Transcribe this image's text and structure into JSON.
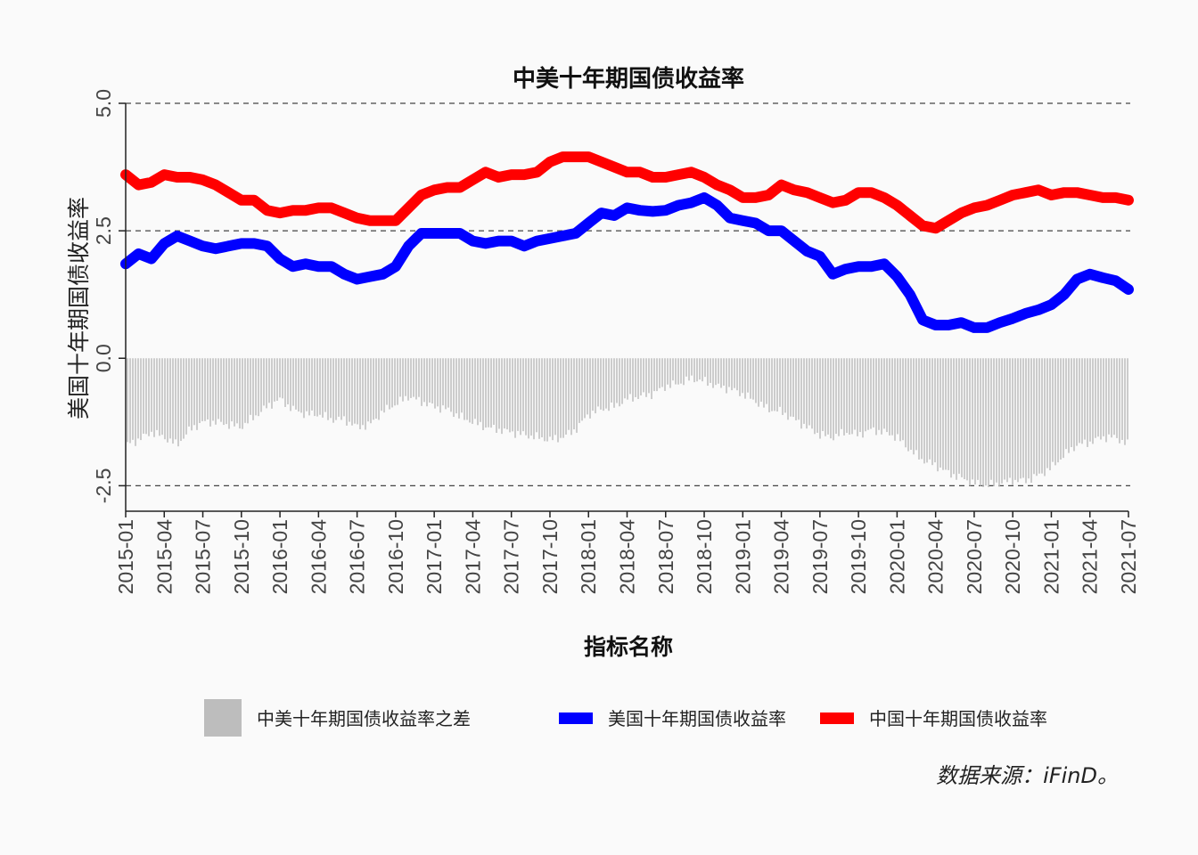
{
  "chart_data": {
    "type": "line",
    "title": "中美十年期国债收益率",
    "xlabel": "指标名称",
    "ylabel": "美国十年期国债收益率",
    "ylim": [
      -3.0,
      5.0
    ],
    "y_ticks": [
      "-2.5",
      "0.0",
      "2.5",
      "5.0"
    ],
    "y_tick_values": [
      -2.5,
      0.0,
      2.5,
      5.0
    ],
    "x_range": [
      "2015-01",
      "2021-07"
    ],
    "x_ticks": [
      "2015-01",
      "2015-04",
      "2015-07",
      "2015-10",
      "2016-01",
      "2016-04",
      "2016-07",
      "2016-10",
      "2017-01",
      "2017-04",
      "2017-07",
      "2017-10",
      "2018-01",
      "2018-04",
      "2018-07",
      "2018-10",
      "2019-01",
      "2019-04",
      "2019-07",
      "2019-10",
      "2020-01",
      "2020-04",
      "2020-07",
      "2020-10",
      "2021-01",
      "2021-04",
      "2021-07"
    ],
    "gridlines": [
      -2.5,
      2.5,
      5.0
    ],
    "grid_style": "dashed",
    "legend_placement": "bottom",
    "source_note": "数据来源：iFinD。",
    "series": [
      {
        "name": "中美十年期国债收益率之差",
        "kind": "bar",
        "color": "#bdbdbd",
        "x": [
          "2015-01",
          "2015-02",
          "2015-03",
          "2015-04",
          "2015-05",
          "2015-06",
          "2015-07",
          "2015-08",
          "2015-09",
          "2015-10",
          "2015-11",
          "2015-12",
          "2016-01",
          "2016-02",
          "2016-03",
          "2016-04",
          "2016-05",
          "2016-06",
          "2016-07",
          "2016-08",
          "2016-09",
          "2016-10",
          "2016-11",
          "2016-12",
          "2017-01",
          "2017-02",
          "2017-03",
          "2017-04",
          "2017-05",
          "2017-06",
          "2017-07",
          "2017-08",
          "2017-09",
          "2017-10",
          "2017-11",
          "2017-12",
          "2018-01",
          "2018-02",
          "2018-03",
          "2018-04",
          "2018-05",
          "2018-06",
          "2018-07",
          "2018-08",
          "2018-09",
          "2018-10",
          "2018-11",
          "2018-12",
          "2019-01",
          "2019-02",
          "2019-03",
          "2019-04",
          "2019-05",
          "2019-06",
          "2019-07",
          "2019-08",
          "2019-09",
          "2019-10",
          "2019-11",
          "2019-12",
          "2020-01",
          "2020-02",
          "2020-03",
          "2020-04",
          "2020-05",
          "2020-06",
          "2020-07",
          "2020-08",
          "2020-09",
          "2020-10",
          "2020-11",
          "2020-12",
          "2021-01",
          "2021-02",
          "2021-03",
          "2021-04",
          "2021-05",
          "2021-06",
          "2021-07"
        ],
        "values": [
          -1.7,
          -1.6,
          -1.45,
          -1.55,
          -1.7,
          -1.4,
          -1.25,
          -1.25,
          -1.3,
          -1.35,
          -1.15,
          -0.95,
          -0.8,
          -1.0,
          -1.1,
          -1.1,
          -1.2,
          -1.2,
          -1.35,
          -1.3,
          -1.05,
          -0.9,
          -0.75,
          -0.85,
          -0.95,
          -1.0,
          -1.15,
          -1.25,
          -1.35,
          -1.4,
          -1.45,
          -1.5,
          -1.55,
          -1.6,
          -1.55,
          -1.4,
          -1.1,
          -1.0,
          -0.95,
          -0.8,
          -0.75,
          -0.7,
          -0.55,
          -0.5,
          -0.4,
          -0.45,
          -0.55,
          -0.6,
          -0.7,
          -0.85,
          -1.0,
          -1.05,
          -1.2,
          -1.35,
          -1.5,
          -1.55,
          -1.45,
          -1.5,
          -1.4,
          -1.45,
          -1.55,
          -1.8,
          -2.0,
          -2.1,
          -2.25,
          -2.35,
          -2.45,
          -2.5,
          -2.45,
          -2.4,
          -2.4,
          -2.3,
          -2.15,
          -1.9,
          -1.7,
          -1.65,
          -1.55,
          -1.55,
          -1.7
        ]
      },
      {
        "name": "美国十年期国债收益率",
        "kind": "line",
        "color": "#0000ff",
        "x": [
          "2015-01",
          "2015-02",
          "2015-03",
          "2015-04",
          "2015-05",
          "2015-06",
          "2015-07",
          "2015-08",
          "2015-09",
          "2015-10",
          "2015-11",
          "2015-12",
          "2016-01",
          "2016-02",
          "2016-03",
          "2016-04",
          "2016-05",
          "2016-06",
          "2016-07",
          "2016-08",
          "2016-09",
          "2016-10",
          "2016-11",
          "2016-12",
          "2017-01",
          "2017-02",
          "2017-03",
          "2017-04",
          "2017-05",
          "2017-06",
          "2017-07",
          "2017-08",
          "2017-09",
          "2017-10",
          "2017-11",
          "2017-12",
          "2018-01",
          "2018-02",
          "2018-03",
          "2018-04",
          "2018-05",
          "2018-06",
          "2018-07",
          "2018-08",
          "2018-09",
          "2018-10",
          "2018-11",
          "2018-12",
          "2019-01",
          "2019-02",
          "2019-03",
          "2019-04",
          "2019-05",
          "2019-06",
          "2019-07",
          "2019-08",
          "2019-09",
          "2019-10",
          "2019-11",
          "2019-12",
          "2020-01",
          "2020-02",
          "2020-03",
          "2020-04",
          "2020-05",
          "2020-06",
          "2020-07",
          "2020-08",
          "2020-09",
          "2020-10",
          "2020-11",
          "2020-12",
          "2021-01",
          "2021-02",
          "2021-03",
          "2021-04",
          "2021-05",
          "2021-06",
          "2021-07"
        ],
        "values": [
          1.85,
          2.05,
          1.95,
          2.25,
          2.4,
          2.3,
          2.2,
          2.15,
          2.2,
          2.25,
          2.25,
          2.2,
          1.95,
          1.8,
          1.85,
          1.8,
          1.8,
          1.65,
          1.55,
          1.6,
          1.65,
          1.8,
          2.2,
          2.45,
          2.45,
          2.45,
          2.45,
          2.3,
          2.25,
          2.3,
          2.3,
          2.2,
          2.3,
          2.35,
          2.4,
          2.45,
          2.65,
          2.85,
          2.8,
          2.95,
          2.9,
          2.88,
          2.9,
          3.0,
          3.05,
          3.15,
          3.0,
          2.75,
          2.7,
          2.65,
          2.5,
          2.5,
          2.3,
          2.1,
          2.0,
          1.65,
          1.75,
          1.8,
          1.8,
          1.85,
          1.6,
          1.25,
          0.75,
          0.65,
          0.65,
          0.7,
          0.6,
          0.6,
          0.7,
          0.78,
          0.88,
          0.95,
          1.05,
          1.25,
          1.55,
          1.65,
          1.58,
          1.52,
          1.35
        ]
      },
      {
        "name": "中国十年期国债收益率",
        "kind": "line",
        "color": "#ff0000",
        "x": [
          "2015-01",
          "2015-02",
          "2015-03",
          "2015-04",
          "2015-05",
          "2015-06",
          "2015-07",
          "2015-08",
          "2015-09",
          "2015-10",
          "2015-11",
          "2015-12",
          "2016-01",
          "2016-02",
          "2016-03",
          "2016-04",
          "2016-05",
          "2016-06",
          "2016-07",
          "2016-08",
          "2016-09",
          "2016-10",
          "2016-11",
          "2016-12",
          "2017-01",
          "2017-02",
          "2017-03",
          "2017-04",
          "2017-05",
          "2017-06",
          "2017-07",
          "2017-08",
          "2017-09",
          "2017-10",
          "2017-11",
          "2017-12",
          "2018-01",
          "2018-02",
          "2018-03",
          "2018-04",
          "2018-05",
          "2018-06",
          "2018-07",
          "2018-08",
          "2018-09",
          "2018-10",
          "2018-11",
          "2018-12",
          "2019-01",
          "2019-02",
          "2019-03",
          "2019-04",
          "2019-05",
          "2019-06",
          "2019-07",
          "2019-08",
          "2019-09",
          "2019-10",
          "2019-11",
          "2019-12",
          "2020-01",
          "2020-02",
          "2020-03",
          "2020-04",
          "2020-05",
          "2020-06",
          "2020-07",
          "2020-08",
          "2020-09",
          "2020-10",
          "2020-11",
          "2020-12",
          "2021-01",
          "2021-02",
          "2021-03",
          "2021-04",
          "2021-05",
          "2021-06",
          "2021-07"
        ],
        "values": [
          3.6,
          3.4,
          3.45,
          3.6,
          3.55,
          3.55,
          3.5,
          3.4,
          3.25,
          3.1,
          3.1,
          2.9,
          2.85,
          2.9,
          2.9,
          2.95,
          2.95,
          2.85,
          2.75,
          2.7,
          2.7,
          2.7,
          2.95,
          3.2,
          3.3,
          3.35,
          3.35,
          3.5,
          3.65,
          3.55,
          3.6,
          3.6,
          3.65,
          3.85,
          3.95,
          3.95,
          3.95,
          3.85,
          3.75,
          3.65,
          3.65,
          3.55,
          3.55,
          3.6,
          3.65,
          3.55,
          3.4,
          3.3,
          3.15,
          3.15,
          3.2,
          3.4,
          3.3,
          3.25,
          3.15,
          3.05,
          3.1,
          3.25,
          3.25,
          3.15,
          3.0,
          2.8,
          2.6,
          2.55,
          2.7,
          2.85,
          2.95,
          3.0,
          3.1,
          3.2,
          3.25,
          3.3,
          3.2,
          3.25,
          3.25,
          3.2,
          3.15,
          3.15,
          3.1
        ]
      }
    ]
  }
}
